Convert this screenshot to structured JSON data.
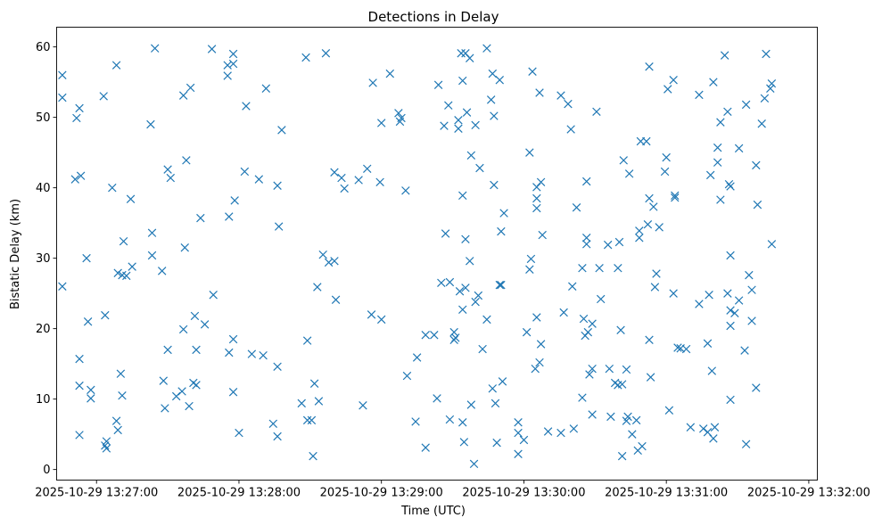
{
  "chart_data": {
    "type": "scatter",
    "title": "Detections in Delay",
    "xlabel": "Time (UTC)",
    "ylabel": "Bistatic Delay (km)",
    "x_unit": "minutes after 2025-10-29 13:27:00 UTC",
    "xlim": [
      -0.28,
      5.06
    ],
    "ylim": [
      -1.5,
      62.8
    ],
    "x_ticks": [
      {
        "value": 0,
        "label": "2025-10-29 13:27:00"
      },
      {
        "value": 1,
        "label": "2025-10-29 13:28:00"
      },
      {
        "value": 2,
        "label": "2025-10-29 13:29:00"
      },
      {
        "value": 3,
        "label": "2025-10-29 13:30:00"
      },
      {
        "value": 4,
        "label": "2025-10-29 13:31:00"
      },
      {
        "value": 5,
        "label": "2025-10-29 13:32:00"
      }
    ],
    "y_ticks": [
      {
        "value": 0,
        "label": "0"
      },
      {
        "value": 10,
        "label": "10"
      },
      {
        "value": 20,
        "label": "20"
      },
      {
        "value": 30,
        "label": "30"
      },
      {
        "value": 40,
        "label": "40"
      },
      {
        "value": 50,
        "label": "50"
      },
      {
        "value": 60,
        "label": "60"
      }
    ],
    "marker": "x",
    "color": "#1f77b4",
    "series": [
      {
        "name": "Detections",
        "points": [
          [
            -0.24,
            56.0
          ],
          [
            -0.24,
            52.8
          ],
          [
            -0.24,
            26.0
          ],
          [
            -0.15,
            41.2
          ],
          [
            -0.14,
            49.9
          ],
          [
            -0.12,
            51.3
          ],
          [
            -0.11,
            41.7
          ],
          [
            -0.12,
            15.7
          ],
          [
            -0.12,
            11.9
          ],
          [
            -0.12,
            4.9
          ],
          [
            -0.07,
            30.0
          ],
          [
            -0.06,
            21.0
          ],
          [
            -0.04,
            11.3
          ],
          [
            -0.04,
            10.1
          ],
          [
            0.05,
            53.0
          ],
          [
            0.06,
            21.9
          ],
          [
            0.06,
            3.4
          ],
          [
            0.07,
            3.0
          ],
          [
            0.07,
            4.0
          ],
          [
            0.11,
            40.0
          ],
          [
            0.14,
            57.4
          ],
          [
            0.14,
            6.9
          ],
          [
            0.15,
            5.6
          ],
          [
            0.15,
            27.9
          ],
          [
            0.17,
            13.6
          ],
          [
            0.18,
            27.6
          ],
          [
            0.18,
            10.5
          ],
          [
            0.19,
            32.4
          ],
          [
            0.21,
            27.5
          ],
          [
            0.24,
            38.4
          ],
          [
            0.25,
            28.8
          ],
          [
            0.38,
            49.0
          ],
          [
            0.39,
            30.4
          ],
          [
            0.39,
            33.6
          ],
          [
            0.41,
            59.8
          ],
          [
            0.46,
            28.2
          ],
          [
            0.47,
            12.6
          ],
          [
            0.48,
            8.7
          ],
          [
            0.5,
            42.6
          ],
          [
            0.5,
            17.0
          ],
          [
            0.52,
            41.4
          ],
          [
            0.56,
            10.4
          ],
          [
            0.6,
            11.1
          ],
          [
            0.61,
            53.1
          ],
          [
            0.62,
            31.5
          ],
          [
            0.61,
            19.9
          ],
          [
            0.63,
            43.9
          ],
          [
            0.65,
            9.0
          ],
          [
            0.66,
            54.2
          ],
          [
            0.68,
            12.3
          ],
          [
            0.69,
            21.8
          ],
          [
            0.7,
            17.0
          ],
          [
            0.7,
            12.0
          ],
          [
            0.73,
            35.7
          ],
          [
            0.76,
            20.6
          ],
          [
            0.82,
            24.8
          ],
          [
            0.81,
            59.7
          ],
          [
            0.92,
            55.9
          ],
          [
            0.92,
            57.4
          ],
          [
            0.93,
            35.9
          ],
          [
            0.93,
            16.6
          ],
          [
            0.96,
            57.6
          ],
          [
            0.96,
            59.0
          ],
          [
            0.96,
            18.5
          ],
          [
            0.96,
            11.0
          ],
          [
            0.97,
            38.2
          ],
          [
            1.0,
            5.2
          ],
          [
            1.05,
            51.6
          ],
          [
            1.04,
            42.3
          ],
          [
            1.09,
            16.4
          ],
          [
            1.14,
            41.2
          ],
          [
            1.17,
            16.2
          ],
          [
            1.19,
            54.1
          ],
          [
            1.24,
            6.5
          ],
          [
            1.27,
            40.3
          ],
          [
            1.27,
            14.6
          ],
          [
            1.27,
            4.7
          ],
          [
            1.28,
            34.5
          ],
          [
            1.3,
            48.2
          ],
          [
            1.44,
            9.4
          ],
          [
            1.47,
            58.5
          ],
          [
            1.48,
            18.3
          ],
          [
            1.48,
            7.0
          ],
          [
            1.51,
            7.0
          ],
          [
            1.53,
            12.2
          ],
          [
            1.52,
            1.9
          ],
          [
            1.55,
            25.9
          ],
          [
            1.56,
            9.7
          ],
          [
            1.59,
            30.5
          ],
          [
            1.61,
            59.1
          ],
          [
            1.63,
            29.4
          ],
          [
            1.67,
            29.6
          ],
          [
            1.67,
            42.2
          ],
          [
            1.68,
            24.1
          ],
          [
            1.72,
            41.4
          ],
          [
            1.74,
            39.9
          ],
          [
            1.84,
            41.1
          ],
          [
            1.87,
            9.1
          ],
          [
            1.9,
            42.7
          ],
          [
            1.93,
            22.0
          ],
          [
            1.94,
            54.9
          ],
          [
            1.99,
            40.8
          ],
          [
            2.0,
            49.2
          ],
          [
            2.0,
            21.3
          ],
          [
            2.06,
            56.2
          ],
          [
            2.12,
            50.6
          ],
          [
            2.13,
            49.4
          ],
          [
            2.14,
            49.9
          ],
          [
            2.17,
            39.6
          ],
          [
            2.18,
            13.3
          ],
          [
            2.24,
            6.8
          ],
          [
            2.25,
            15.9
          ],
          [
            2.31,
            19.1
          ],
          [
            2.31,
            3.1
          ],
          [
            2.37,
            19.1
          ],
          [
            2.39,
            10.1
          ],
          [
            2.4,
            54.6
          ],
          [
            2.42,
            26.5
          ],
          [
            2.44,
            48.8
          ],
          [
            2.45,
            33.5
          ],
          [
            2.47,
            51.7
          ],
          [
            2.48,
            7.1
          ],
          [
            2.48,
            26.6
          ],
          [
            2.51,
            18.4
          ],
          [
            2.51,
            19.5
          ],
          [
            2.52,
            18.7
          ],
          [
            2.54,
            49.6
          ],
          [
            2.54,
            48.4
          ],
          [
            2.55,
            25.3
          ],
          [
            2.56,
            59.1
          ],
          [
            2.57,
            55.2
          ],
          [
            2.57,
            38.9
          ],
          [
            2.57,
            22.7
          ],
          [
            2.57,
            6.7
          ],
          [
            2.58,
            3.9
          ],
          [
            2.59,
            59.1
          ],
          [
            2.59,
            32.7
          ],
          [
            2.59,
            25.8
          ],
          [
            2.6,
            50.7
          ],
          [
            2.62,
            29.6
          ],
          [
            2.62,
            58.4
          ],
          [
            2.63,
            44.6
          ],
          [
            2.63,
            9.2
          ],
          [
            2.65,
            0.8
          ],
          [
            2.66,
            23.8
          ],
          [
            2.66,
            48.9
          ],
          [
            2.68,
            24.7
          ],
          [
            2.69,
            42.8
          ],
          [
            2.71,
            17.1
          ],
          [
            2.74,
            59.8
          ],
          [
            2.74,
            21.3
          ],
          [
            2.77,
            52.5
          ],
          [
            2.78,
            11.5
          ],
          [
            2.78,
            56.2
          ],
          [
            2.79,
            50.2
          ],
          [
            2.79,
            40.4
          ],
          [
            2.8,
            9.4
          ],
          [
            2.81,
            3.8
          ],
          [
            2.83,
            55.3
          ],
          [
            2.83,
            26.2
          ],
          [
            2.84,
            33.8
          ],
          [
            2.84,
            26.2
          ],
          [
            2.85,
            12.5
          ],
          [
            2.86,
            36.4
          ],
          [
            2.96,
            6.7
          ],
          [
            2.96,
            2.2
          ],
          [
            2.96,
            5.2
          ],
          [
            3.0,
            4.2
          ],
          [
            3.02,
            19.5
          ],
          [
            3.05,
            29.9
          ],
          [
            3.04,
            28.4
          ],
          [
            3.04,
            45.0
          ],
          [
            3.06,
            56.5
          ],
          [
            3.08,
            14.3
          ],
          [
            3.09,
            21.6
          ],
          [
            3.09,
            38.5
          ],
          [
            3.09,
            37.1
          ],
          [
            3.09,
            40.1
          ],
          [
            3.11,
            53.5
          ],
          [
            3.11,
            15.2
          ],
          [
            3.12,
            17.8
          ],
          [
            3.12,
            40.8
          ],
          [
            3.13,
            33.3
          ],
          [
            3.17,
            5.4
          ],
          [
            3.26,
            53.1
          ],
          [
            3.26,
            5.2
          ],
          [
            3.28,
            22.3
          ],
          [
            3.31,
            51.9
          ],
          [
            3.33,
            48.3
          ],
          [
            3.34,
            26.0
          ],
          [
            3.35,
            5.8
          ],
          [
            3.37,
            37.2
          ],
          [
            3.41,
            28.6
          ],
          [
            3.41,
            10.2
          ],
          [
            3.42,
            21.4
          ],
          [
            3.44,
            32.9
          ],
          [
            3.43,
            19.0
          ],
          [
            3.44,
            32.0
          ],
          [
            3.44,
            40.9
          ],
          [
            3.45,
            19.5
          ],
          [
            3.46,
            13.5
          ],
          [
            3.48,
            14.3
          ],
          [
            3.48,
            7.8
          ],
          [
            3.48,
            20.7
          ],
          [
            3.51,
            50.8
          ],
          [
            3.53,
            28.6
          ],
          [
            3.54,
            24.2
          ],
          [
            3.59,
            31.9
          ],
          [
            3.6,
            14.3
          ],
          [
            3.61,
            7.5
          ],
          [
            3.64,
            12.3
          ],
          [
            3.66,
            12.0
          ],
          [
            3.66,
            28.6
          ],
          [
            3.67,
            32.3
          ],
          [
            3.68,
            19.8
          ],
          [
            3.69,
            1.9
          ],
          [
            3.69,
            12.1
          ],
          [
            3.7,
            43.9
          ],
          [
            3.72,
            6.9
          ],
          [
            3.72,
            14.2
          ],
          [
            3.73,
            7.5
          ],
          [
            3.74,
            42.0
          ],
          [
            3.76,
            5.0
          ],
          [
            3.79,
            7.0
          ],
          [
            3.8,
            2.7
          ],
          [
            3.81,
            33.9
          ],
          [
            3.81,
            32.9
          ],
          [
            3.82,
            46.6
          ],
          [
            3.83,
            3.3
          ],
          [
            3.86,
            46.6
          ],
          [
            3.87,
            34.8
          ],
          [
            3.88,
            57.2
          ],
          [
            3.88,
            38.5
          ],
          [
            3.88,
            18.4
          ],
          [
            3.89,
            13.1
          ],
          [
            3.91,
            37.3
          ],
          [
            3.92,
            25.9
          ],
          [
            3.93,
            27.8
          ],
          [
            3.95,
            34.4
          ],
          [
            3.99,
            42.3
          ],
          [
            4.0,
            44.3
          ],
          [
            4.01,
            54.0
          ],
          [
            4.02,
            8.4
          ],
          [
            4.05,
            55.3
          ],
          [
            4.05,
            25.0
          ],
          [
            4.06,
            38.9
          ],
          [
            4.06,
            38.6
          ],
          [
            4.08,
            17.3
          ],
          [
            4.1,
            17.2
          ],
          [
            4.14,
            17.1
          ],
          [
            4.17,
            6.0
          ],
          [
            4.23,
            53.2
          ],
          [
            4.23,
            23.5
          ],
          [
            4.26,
            5.8
          ],
          [
            4.29,
            5.3
          ],
          [
            4.29,
            17.9
          ],
          [
            4.3,
            24.8
          ],
          [
            4.31,
            41.8
          ],
          [
            4.32,
            14.0
          ],
          [
            4.33,
            4.4
          ],
          [
            4.33,
            55.0
          ],
          [
            4.34,
            6.0
          ],
          [
            4.36,
            45.7
          ],
          [
            4.36,
            43.6
          ],
          [
            4.38,
            49.3
          ],
          [
            4.38,
            38.3
          ],
          [
            4.41,
            58.8
          ],
          [
            4.43,
            50.8
          ],
          [
            4.43,
            25.0
          ],
          [
            4.44,
            40.5
          ],
          [
            4.45,
            40.2
          ],
          [
            4.45,
            30.4
          ],
          [
            4.45,
            22.6
          ],
          [
            4.45,
            20.4
          ],
          [
            4.45,
            9.9
          ],
          [
            4.48,
            22.2
          ],
          [
            4.51,
            45.6
          ],
          [
            4.51,
            24.0
          ],
          [
            4.55,
            16.9
          ],
          [
            4.56,
            51.8
          ],
          [
            4.56,
            3.6
          ],
          [
            4.58,
            27.6
          ],
          [
            4.6,
            25.5
          ],
          [
            4.6,
            21.1
          ],
          [
            4.63,
            43.2
          ],
          [
            4.63,
            11.6
          ],
          [
            4.64,
            37.6
          ],
          [
            4.67,
            49.1
          ],
          [
            4.69,
            52.7
          ],
          [
            4.7,
            59.0
          ],
          [
            4.73,
            54.1
          ],
          [
            4.74,
            54.8
          ],
          [
            4.74,
            32.0
          ]
        ]
      }
    ]
  }
}
